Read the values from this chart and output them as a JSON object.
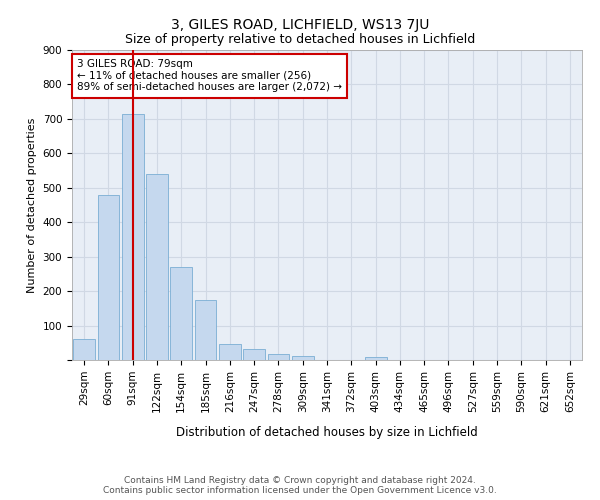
{
  "title1": "3, GILES ROAD, LICHFIELD, WS13 7JU",
  "title2": "Size of property relative to detached houses in Lichfield",
  "xlabel": "Distribution of detached houses by size in Lichfield",
  "ylabel": "Number of detached properties",
  "categories": [
    "29sqm",
    "60sqm",
    "91sqm",
    "122sqm",
    "154sqm",
    "185sqm",
    "216sqm",
    "247sqm",
    "278sqm",
    "309sqm",
    "341sqm",
    "372sqm",
    "403sqm",
    "434sqm",
    "465sqm",
    "496sqm",
    "527sqm",
    "559sqm",
    "590sqm",
    "621sqm",
    "652sqm"
  ],
  "values": [
    60,
    480,
    714,
    540,
    270,
    175,
    47,
    32,
    17,
    13,
    0,
    0,
    8,
    0,
    0,
    0,
    0,
    0,
    0,
    0,
    0
  ],
  "bar_color": "#c5d8ee",
  "bar_edge_color": "#7aaed4",
  "grid_color": "#d0d8e4",
  "bg_color": "#e8eef6",
  "annotation_text": "3 GILES ROAD: 79sqm\n← 11% of detached houses are smaller (256)\n89% of semi-detached houses are larger (2,072) →",
  "annotation_box_color": "#ffffff",
  "annotation_border_color": "#cc0000",
  "property_line_color": "#cc0000",
  "property_line_x": 2.0,
  "ylim": [
    0,
    900
  ],
  "yticks": [
    0,
    100,
    200,
    300,
    400,
    500,
    600,
    700,
    800,
    900
  ],
  "footer1": "Contains HM Land Registry data © Crown copyright and database right 2024.",
  "footer2": "Contains public sector information licensed under the Open Government Licence v3.0.",
  "title1_fontsize": 10,
  "title2_fontsize": 9,
  "xlabel_fontsize": 8.5,
  "ylabel_fontsize": 8,
  "tick_fontsize": 7.5,
  "footer_fontsize": 6.5,
  "annotation_fontsize": 7.5
}
